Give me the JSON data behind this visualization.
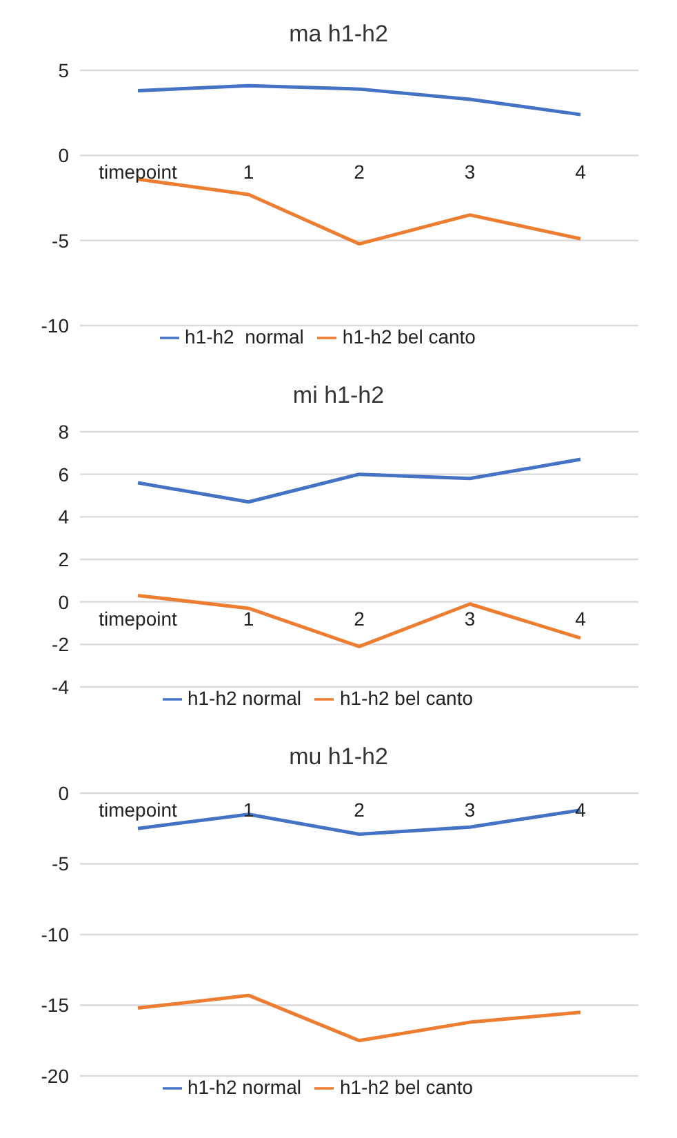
{
  "chart_data": [
    {
      "type": "line",
      "title": "ma  h1-h2",
      "categories": [
        "timepoint",
        "1",
        "2",
        "3",
        "4"
      ],
      "series": [
        {
          "name": "h1-h2  normal",
          "color": "#4472c4",
          "values": [
            3.8,
            4.1,
            3.9,
            3.3,
            2.4
          ]
        },
        {
          "name": "h1-h2 bel canto",
          "color": "#ed7d31",
          "values": [
            -1.4,
            -2.3,
            -5.2,
            -3.5,
            -4.9
          ]
        }
      ],
      "ylim": [
        -10,
        5
      ],
      "yticks": [
        -10,
        -5,
        0,
        5
      ],
      "grid": "y",
      "legend": "bottom",
      "marker": "none",
      "line_style": "solid"
    },
    {
      "type": "line",
      "title": "mi h1-h2",
      "categories": [
        "timepoint",
        "1",
        "2",
        "3",
        "4"
      ],
      "series": [
        {
          "name": "h1-h2 normal",
          "color": "#4472c4",
          "values": [
            5.6,
            4.7,
            6.0,
            5.8,
            6.7
          ]
        },
        {
          "name": "h1-h2 bel canto",
          "color": "#ed7d31",
          "values": [
            0.3,
            -0.3,
            -2.1,
            -0.1,
            -1.7
          ]
        }
      ],
      "ylim": [
        -4,
        8
      ],
      "yticks": [
        -4,
        -2,
        0,
        2,
        4,
        6,
        8
      ],
      "grid": "y",
      "legend": "bottom",
      "marker": "none",
      "line_style": "solid"
    },
    {
      "type": "line",
      "title": "mu h1-h2",
      "categories": [
        "timepoint",
        "1",
        "2",
        "3",
        "4"
      ],
      "series": [
        {
          "name": "h1-h2 normal",
          "color": "#4472c4",
          "values": [
            -2.5,
            -1.5,
            -2.9,
            -2.4,
            -1.2
          ]
        },
        {
          "name": "h1-h2 bel canto",
          "color": "#ed7d31",
          "values": [
            -15.2,
            -14.3,
            -17.5,
            -16.2,
            -15.5
          ]
        }
      ],
      "ylim": [
        -20,
        0
      ],
      "yticks": [
        -20,
        -15,
        -10,
        -5,
        0
      ],
      "grid": "y",
      "legend": "bottom",
      "marker": "none",
      "line_style": "solid"
    }
  ]
}
